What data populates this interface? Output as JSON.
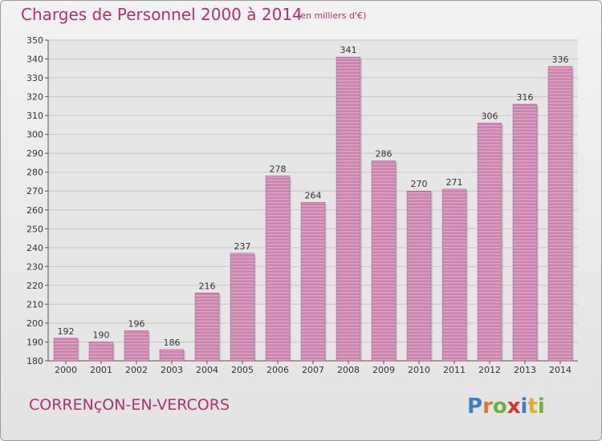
{
  "header": {
    "title": "Charges de Personnel 2000 à 2014",
    "subtitle": "(en milliers d'€)"
  },
  "footer": {
    "commune": "CORRENçON-EN-VERCORS",
    "logo_text": "Proxiti"
  },
  "colors": {
    "bar_top": "#e8a9cd",
    "bar_bottom": "#b56e98",
    "title": "#b5306e",
    "grid": "#c8c8c8"
  },
  "chart_data": {
    "type": "bar",
    "categories": [
      "2000",
      "2001",
      "2002",
      "2003",
      "2004",
      "2005",
      "2006",
      "2007",
      "2008",
      "2009",
      "2010",
      "2011",
      "2012",
      "2013",
      "2014"
    ],
    "values": [
      192,
      190,
      196,
      186,
      216,
      237,
      278,
      264,
      341,
      286,
      270,
      271,
      306,
      316,
      336
    ],
    "ylim": [
      180,
      350
    ],
    "yticks": [
      180,
      190,
      200,
      210,
      220,
      230,
      240,
      250,
      260,
      270,
      280,
      290,
      300,
      310,
      320,
      330,
      340,
      350
    ],
    "grid": true
  }
}
